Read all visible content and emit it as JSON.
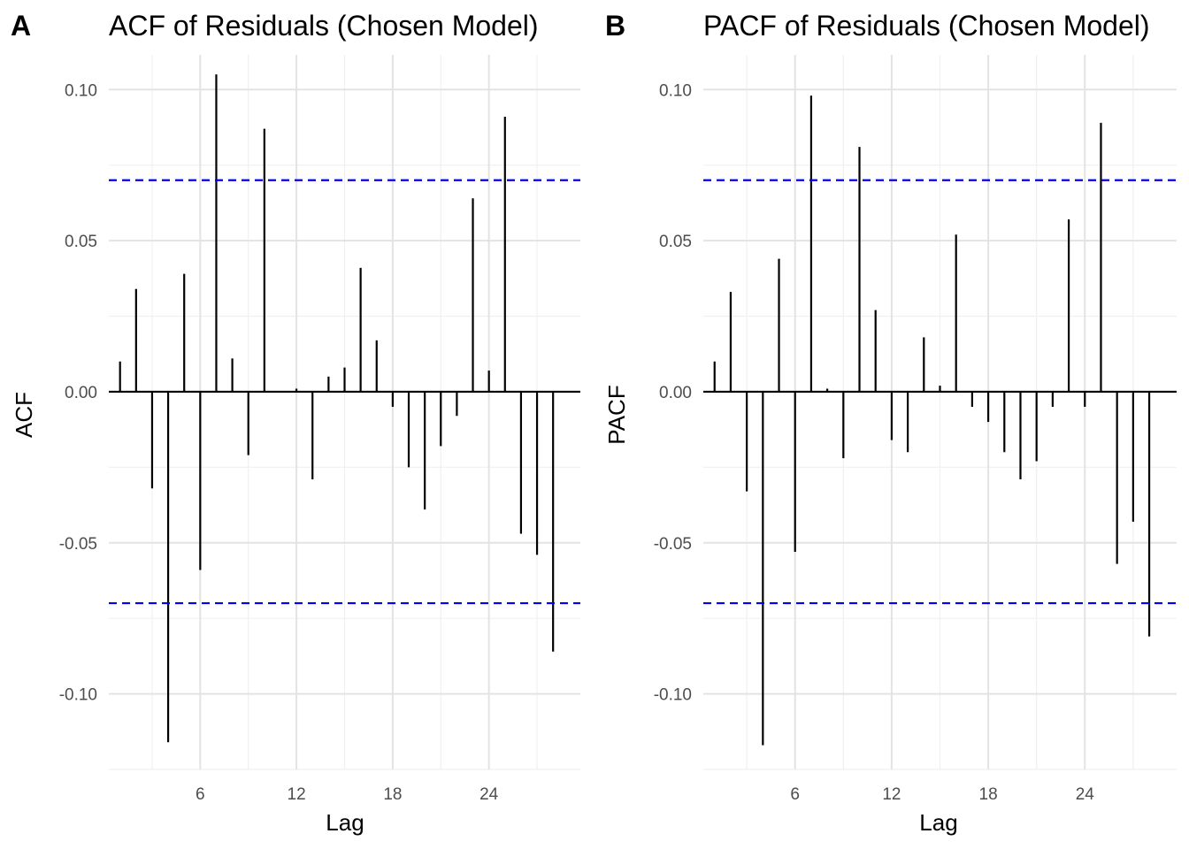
{
  "chart_data": [
    {
      "type": "bar",
      "panel_label": "A",
      "title": "ACF of Residuals (Chosen Model)",
      "xlabel": "Lag",
      "ylabel": "ACF",
      "xlim": [
        0.3,
        29.7
      ],
      "ylim": [
        -0.125,
        0.115
      ],
      "grid": true,
      "x_major_ticks": [
        6,
        12,
        18,
        24
      ],
      "x_tick_labels": [
        "6",
        "12",
        "18",
        "24"
      ],
      "x_minor_ticks": [
        3,
        9,
        15,
        21,
        27
      ],
      "y_major_ticks": [
        -0.1,
        -0.05,
        0.0,
        0.05,
        0.1
      ],
      "y_tick_labels": [
        "-0.10",
        "-0.05",
        "0.00",
        "0.05",
        "0.10"
      ],
      "y_minor_ticks": [
        -0.125,
        -0.075,
        -0.025,
        0.025,
        0.075
      ],
      "confidence_band": [
        0.07,
        -0.07
      ],
      "confidence_color": "#0000ff",
      "bar_color": "#000000",
      "lags": [
        1,
        2,
        3,
        4,
        5,
        6,
        7,
        8,
        9,
        10,
        11,
        12,
        13,
        14,
        15,
        16,
        17,
        18,
        19,
        20,
        21,
        22,
        23,
        24,
        25,
        26,
        27,
        28
      ],
      "values": [
        0.01,
        0.034,
        -0.032,
        -0.116,
        0.039,
        -0.059,
        0.105,
        0.011,
        -0.021,
        0.087,
        0.0,
        0.001,
        -0.029,
        0.005,
        0.008,
        0.041,
        0.017,
        -0.005,
        -0.025,
        -0.039,
        -0.018,
        -0.008,
        0.064,
        0.007,
        0.091,
        -0.047,
        -0.054,
        -0.086
      ]
    },
    {
      "type": "bar",
      "panel_label": "B",
      "title": "PACF of Residuals (Chosen Model)",
      "xlabel": "Lag",
      "ylabel": "PACF",
      "xlim": [
        0.3,
        29.7
      ],
      "ylim": [
        -0.125,
        0.115
      ],
      "grid": true,
      "x_major_ticks": [
        6,
        12,
        18,
        24
      ],
      "x_tick_labels": [
        "6",
        "12",
        "18",
        "24"
      ],
      "x_minor_ticks": [
        3,
        9,
        15,
        21,
        27
      ],
      "y_major_ticks": [
        -0.1,
        -0.05,
        0.0,
        0.05,
        0.1
      ],
      "y_tick_labels": [
        "-0.10",
        "-0.05",
        "0.00",
        "0.05",
        "0.10"
      ],
      "y_minor_ticks": [
        -0.125,
        -0.075,
        -0.025,
        0.025,
        0.075
      ],
      "confidence_band": [
        0.07,
        -0.07
      ],
      "confidence_color": "#0000ff",
      "bar_color": "#000000",
      "lags": [
        1,
        2,
        3,
        4,
        5,
        6,
        7,
        8,
        9,
        10,
        11,
        12,
        13,
        14,
        15,
        16,
        17,
        18,
        19,
        20,
        21,
        22,
        23,
        24,
        25,
        26,
        27,
        28
      ],
      "values": [
        0.01,
        0.033,
        -0.033,
        -0.117,
        0.044,
        -0.053,
        0.098,
        0.001,
        -0.022,
        0.081,
        0.027,
        -0.016,
        -0.02,
        0.018,
        0.002,
        0.052,
        -0.005,
        -0.01,
        -0.02,
        -0.029,
        -0.023,
        -0.005,
        0.057,
        -0.005,
        0.089,
        -0.057,
        -0.043,
        -0.081
      ]
    }
  ]
}
